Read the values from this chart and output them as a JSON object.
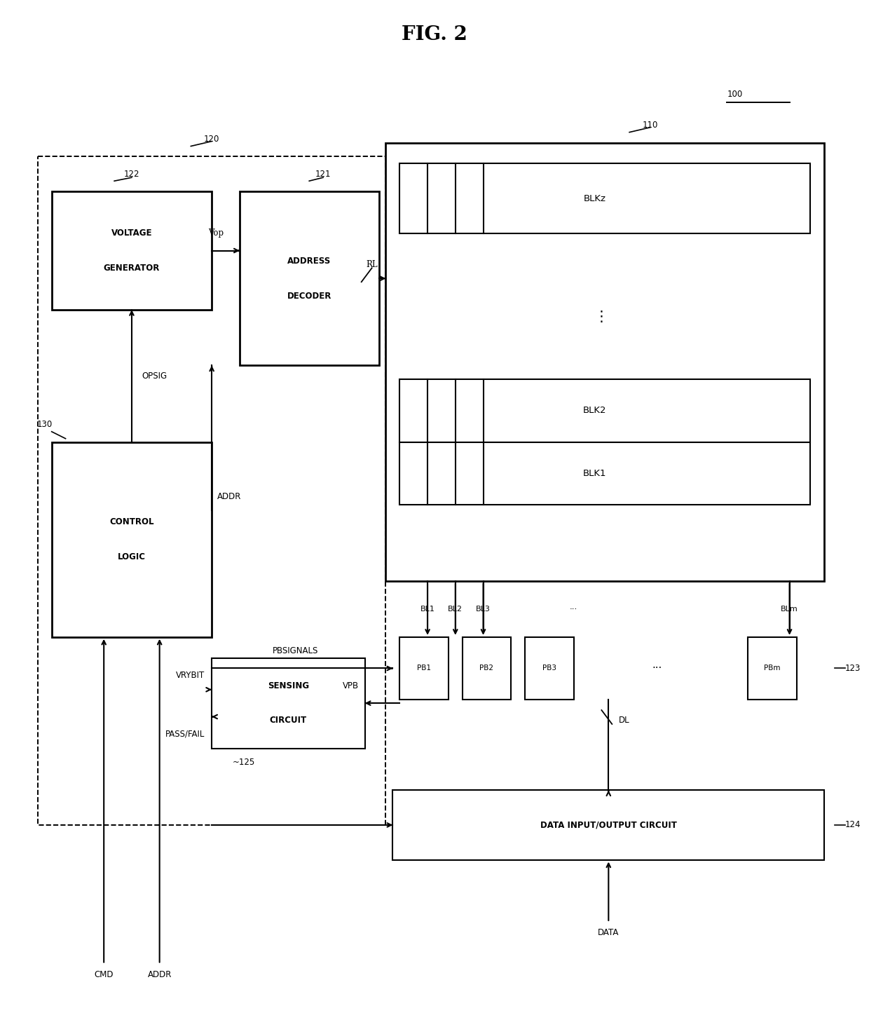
{
  "title": "FIG. 2",
  "bg_color": "#ffffff",
  "fig_width": 12.4,
  "fig_height": 14.58,
  "labels": {
    "100": "100",
    "110": "110",
    "120": "120",
    "121": "121",
    "122": "122",
    "123": "123",
    "124": "124",
    "125": "125",
    "130": "130"
  }
}
